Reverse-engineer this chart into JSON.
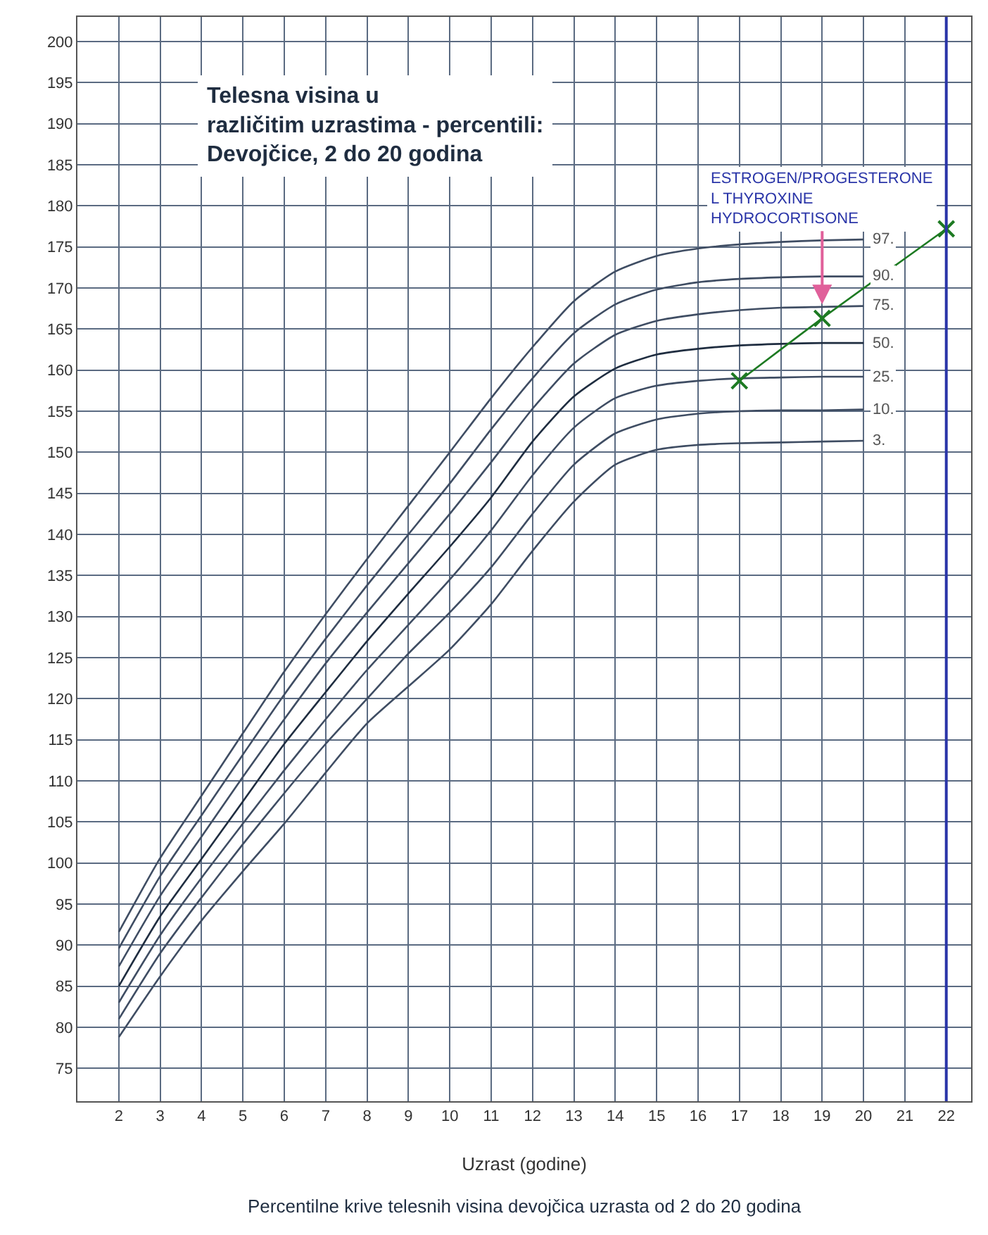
{
  "chart_data": {
    "type": "line",
    "title": "Telesna visina u različitim uzrastima - percentili: Devojčice, 2 do 20 godina",
    "xlabel": "Uzrast (godine)",
    "x": [
      2,
      3,
      4,
      5,
      6,
      7,
      8,
      9,
      10,
      11,
      12,
      13,
      14,
      15,
      16,
      17,
      18,
      19,
      20
    ],
    "series": [
      {
        "name": "97.",
        "color": "#3f4d63",
        "values": [
          91.6,
          100.6,
          108.2,
          115.8,
          123.3,
          130.3,
          137,
          143.5,
          150,
          156.6,
          162.8,
          168.4,
          172,
          173.9,
          174.8,
          175.3,
          175.6,
          175.8,
          175.9
        ]
      },
      {
        "name": "90.",
        "color": "#3f4d63",
        "values": [
          89.6,
          98.4,
          105.8,
          113.2,
          120.5,
          127.3,
          133.8,
          140,
          146.2,
          152.8,
          159,
          164.5,
          168,
          169.8,
          170.7,
          171.1,
          171.3,
          171.4,
          171.4
        ]
      },
      {
        "name": "75.",
        "color": "#3f4d63",
        "values": [
          87.4,
          96,
          103.2,
          110.5,
          117.5,
          124.3,
          130.5,
          136.5,
          142.5,
          148.8,
          155.3,
          160.8,
          164.3,
          166,
          166.8,
          167.3,
          167.6,
          167.7,
          167.8
        ]
      },
      {
        "name": "50.",
        "color": "#1f2d40",
        "values": [
          85,
          93.5,
          100.5,
          107.5,
          114.5,
          120.8,
          127,
          132.8,
          138.5,
          144.5,
          151.3,
          156.8,
          160.2,
          161.9,
          162.6,
          163,
          163.2,
          163.3,
          163.3
        ]
      },
      {
        "name": "25.",
        "color": "#3f4d63",
        "values": [
          83,
          91.2,
          98.2,
          104.8,
          111.3,
          117.5,
          123.5,
          129,
          134.5,
          140.5,
          147.2,
          153,
          156.6,
          158.1,
          158.7,
          159,
          159.1,
          159.2,
          159.2
        ]
      },
      {
        "name": "10.",
        "color": "#3f4d63",
        "values": [
          81,
          89,
          95.8,
          102.3,
          108.5,
          114.5,
          120,
          125.5,
          130.5,
          136,
          142.5,
          148.5,
          152.3,
          154,
          154.7,
          155,
          155.1,
          155.1,
          155.2
        ]
      },
      {
        "name": "3.",
        "color": "#3f4d63",
        "values": [
          78.8,
          86.2,
          93,
          99,
          104.8,
          111,
          117,
          121.5,
          126,
          131.5,
          138,
          144,
          148.5,
          150.3,
          150.9,
          151.1,
          151.2,
          151.3,
          151.4
        ]
      },
      {
        "color": "#1d7a22",
        "marker": "cross",
        "x": [
          17,
          19,
          22
        ],
        "values": [
          158.7,
          166.3,
          177.2
        ]
      }
    ],
    "xlim": [
      1,
      22.6
    ],
    "xticks": [
      2,
      3,
      4,
      5,
      6,
      7,
      8,
      9,
      10,
      11,
      12,
      13,
      14,
      15,
      16,
      17,
      18,
      19,
      20,
      21,
      22
    ],
    "ylim": [
      71,
      203
    ],
    "yticks": [
      75,
      80,
      85,
      90,
      95,
      100,
      105,
      110,
      115,
      120,
      125,
      130,
      135,
      140,
      145,
      150,
      155,
      160,
      165,
      170,
      175,
      180,
      185,
      190,
      195,
      200
    ],
    "grid": true,
    "legend": false,
    "marker": "none",
    "line_style": "solid",
    "ref_lines": [
      {
        "axis": "x",
        "value": 22,
        "color": "#2a35a8"
      }
    ],
    "annotations": [
      {
        "text": "ESTROGEN/PROGESTERONE\nL THYROXINE\nHYDROCORTISONE",
        "x": 19,
        "y": 168
      },
      "Percentilne krive telesnih visina devojčica uzrasta od 2 do 20 godina"
    ]
  }
}
